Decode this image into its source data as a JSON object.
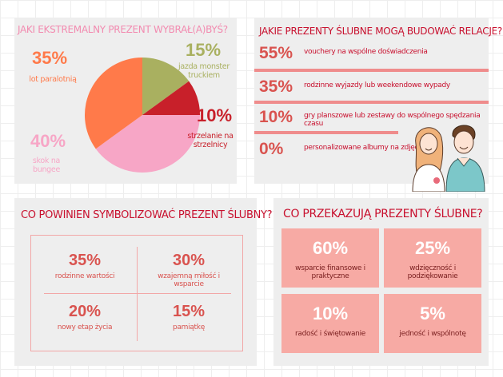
{
  "pie_panel": {
    "title": "JAKI EKSTREMALNY PREZENT WYBRAŁ(A)BYŚ?",
    "colors": [
      "#a9b060",
      "#c8202a",
      "#f7a6c6",
      "#ff7a4a"
    ]
  },
  "relations_panel": {
    "title": "JAKIE PREZENTY ŚLUBNE MOGĄ BUDOWAĆ RELACJE?",
    "rows": [
      {
        "pct": "55%",
        "text": "vouchery na wspólne doświadczenia"
      },
      {
        "pct": "35%",
        "text": "rodzinne wyjazdy lub weekendowe wypady"
      },
      {
        "pct": "10%",
        "text": "gry planszowe lub zestawy do wspólnego spędzania czasu"
      },
      {
        "pct": "0%",
        "text": "personalizowane albumy na zdjęcia"
      }
    ]
  },
  "symbol_panel": {
    "title": "CO POWINIEN SYMBOLIZOWAĆ PREZENT ŚLUBNY?",
    "cells": [
      {
        "value": "35%",
        "label": "rodzinne wartości"
      },
      {
        "value": "30%",
        "label": "wzajemną miłość i wsparcie"
      },
      {
        "value": "20%",
        "label": "nowy etap życia"
      },
      {
        "value": "15%",
        "label": "pamiątkę"
      }
    ]
  },
  "convey_panel": {
    "title": "CO PRZEKAZUJĄ PREZENTY ŚLUBNE?",
    "tiles": [
      {
        "value": "60%",
        "label": "wsparcie finansowe i praktyczne"
      },
      {
        "value": "25%",
        "label": "wdzięczność i podziękowanie"
      },
      {
        "value": "10%",
        "label": "radość i świętowanie"
      },
      {
        "value": "5%",
        "label": "jedność i wspólnotę"
      }
    ]
  },
  "chart_data": {
    "type": "pie",
    "title": "JAKI EKSTREMALNY PREZENT WYBRAŁ(A)BYŚ?",
    "slices": [
      {
        "label": "jazda monster truckiem",
        "value": 15,
        "display": "15%"
      },
      {
        "label": "strzelanie na strzelnicy",
        "value": 10,
        "display": "10%"
      },
      {
        "label": "skok na bungee",
        "value": 40,
        "display": "40%"
      },
      {
        "label": "lot paralotnią",
        "value": 35,
        "display": "35%"
      }
    ]
  }
}
